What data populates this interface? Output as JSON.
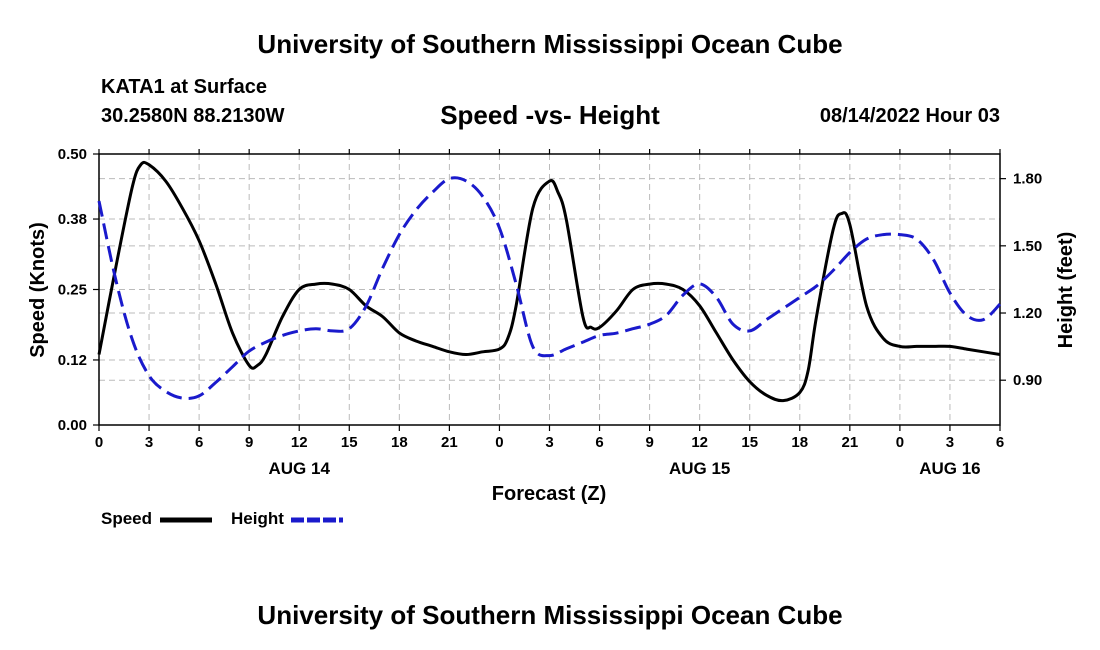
{
  "header": {
    "title": "University of Southern Mississippi Ocean Cube",
    "station": "KATA1 at Surface",
    "coords": "30.2580N  88.2130W",
    "chart_title": "Speed -vs- Height",
    "datetime": "08/14/2022 Hour 03"
  },
  "footer": {
    "title": "University of Southern Mississippi Ocean Cube"
  },
  "legend": [
    {
      "label": "Speed",
      "color": "#000000",
      "style": "solid"
    },
    {
      "label": "Height",
      "color": "#1a1acc",
      "style": "dashed"
    }
  ],
  "chart_data": {
    "type": "line",
    "title": "Speed -vs- Height",
    "xlabel": "Forecast (Z)",
    "ylabel": "Speed (Knots)",
    "y2label": "Height (feet)",
    "x_range": [
      0,
      54
    ],
    "ylim": [
      0,
      0.5
    ],
    "y2lim": [
      0.7,
      1.91
    ],
    "x_ticks": [
      0,
      3,
      6,
      9,
      12,
      15,
      18,
      21,
      24,
      27,
      30,
      33,
      36,
      39,
      42,
      45,
      48,
      51,
      54
    ],
    "x_tick_labels": [
      "0",
      "3",
      "6",
      "9",
      "12",
      "15",
      "18",
      "21",
      "0",
      "3",
      "6",
      "9",
      "12",
      "15",
      "18",
      "21",
      "0",
      "3",
      "6"
    ],
    "date_labels": [
      {
        "x": 12,
        "text": "AUG 14"
      },
      {
        "x": 36,
        "text": "AUG 15"
      },
      {
        "x": 51,
        "text": "AUG 16"
      }
    ],
    "y_ticks": [
      0.0,
      0.12,
      0.25,
      0.38,
      0.5
    ],
    "y_tick_labels": [
      "0.00",
      "0.12",
      "0.25",
      "0.38",
      "0.50"
    ],
    "y2_ticks": [
      0.9,
      1.2,
      1.5,
      1.8
    ],
    "y2_tick_labels": [
      "0.90",
      "1.20",
      "1.50",
      "1.80"
    ],
    "grid": true,
    "legend_position": "bottom-left",
    "series": [
      {
        "name": "Speed",
        "axis": "left",
        "color": "#000000",
        "x": [
          0,
          1,
          2,
          2.5,
          3,
          4,
          5,
          6,
          7,
          8,
          9,
          9.5,
          10,
          11,
          12,
          13,
          14,
          15,
          16,
          17,
          18,
          19,
          20,
          21,
          22,
          23,
          24,
          24.5,
          25,
          26,
          27,
          27.5,
          28,
          29,
          29.5,
          30,
          31,
          32,
          33,
          34,
          35,
          36,
          37,
          38,
          39,
          40,
          41,
          42,
          42.5,
          43,
          44,
          44.5,
          45,
          46,
          47,
          48,
          49,
          50,
          51,
          52,
          53,
          54
        ],
        "values": [
          0.13,
          0.29,
          0.44,
          0.48,
          0.48,
          0.45,
          0.4,
          0.34,
          0.26,
          0.17,
          0.11,
          0.11,
          0.13,
          0.2,
          0.25,
          0.26,
          0.26,
          0.25,
          0.22,
          0.2,
          0.17,
          0.155,
          0.145,
          0.135,
          0.13,
          0.135,
          0.14,
          0.16,
          0.22,
          0.4,
          0.45,
          0.43,
          0.38,
          0.2,
          0.18,
          0.18,
          0.21,
          0.25,
          0.26,
          0.26,
          0.25,
          0.22,
          0.17,
          0.12,
          0.08,
          0.055,
          0.045,
          0.06,
          0.1,
          0.2,
          0.36,
          0.39,
          0.37,
          0.22,
          0.16,
          0.145,
          0.145,
          0.145,
          0.145,
          0.14,
          0.135,
          0.13
        ]
      },
      {
        "name": "Height",
        "axis": "right",
        "color": "#1a1acc",
        "x": [
          0,
          1,
          2,
          3,
          4,
          5,
          6,
          7,
          8,
          9,
          10,
          11,
          12,
          13,
          14,
          15,
          16,
          17,
          18,
          19,
          20,
          21,
          22,
          23,
          24,
          25,
          26,
          27,
          28,
          29,
          30,
          31,
          32,
          33,
          34,
          35,
          36,
          37,
          38,
          39,
          40,
          41,
          42,
          43,
          44,
          45,
          46,
          47,
          48,
          49,
          50,
          51,
          52,
          53,
          54
        ],
        "values": [
          1.7,
          1.35,
          1.08,
          0.92,
          0.85,
          0.82,
          0.83,
          0.89,
          0.96,
          1.03,
          1.07,
          1.1,
          1.12,
          1.13,
          1.12,
          1.13,
          1.23,
          1.4,
          1.55,
          1.66,
          1.74,
          1.8,
          1.79,
          1.72,
          1.58,
          1.33,
          1.05,
          1.01,
          1.04,
          1.07,
          1.1,
          1.11,
          1.13,
          1.15,
          1.19,
          1.28,
          1.33,
          1.27,
          1.15,
          1.12,
          1.17,
          1.22,
          1.27,
          1.32,
          1.39,
          1.47,
          1.53,
          1.55,
          1.55,
          1.53,
          1.44,
          1.29,
          1.19,
          1.17,
          1.24
        ]
      }
    ]
  }
}
